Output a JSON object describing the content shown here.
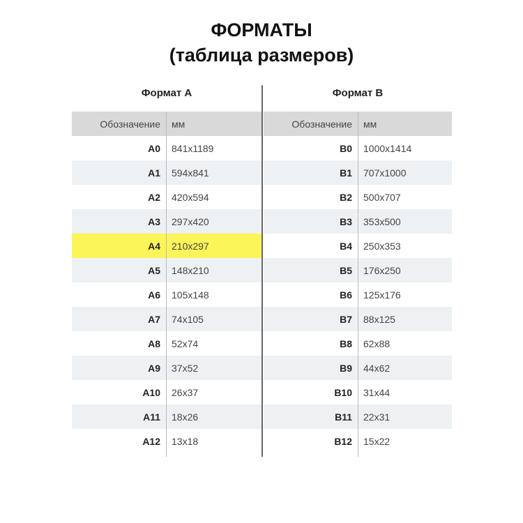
{
  "title_line1": "ФОРМАТЫ",
  "title_line2": "(таблица размеров)",
  "tables": [
    {
      "heading": "Формат A",
      "col1": "Обозначение",
      "col2": "мм",
      "rows": [
        [
          "A0",
          "841x1189"
        ],
        [
          "A1",
          "594x841"
        ],
        [
          "A2",
          "420x594"
        ],
        [
          "A3",
          "297x420"
        ],
        [
          "A4",
          "210x297"
        ],
        [
          "A5",
          "148x210"
        ],
        [
          "A6",
          "105x148"
        ],
        [
          "A7",
          "74x105"
        ],
        [
          "A8",
          "52x74"
        ],
        [
          "A9",
          "37x52"
        ],
        [
          "A10",
          "26x37"
        ],
        [
          "A11",
          "18x26"
        ],
        [
          "A12",
          "13x18"
        ]
      ],
      "highlight_row": "A4",
      "highlight_color": "#fbf559"
    },
    {
      "heading": "Формат B",
      "col1": "Обозначение",
      "col2": "мм",
      "rows": [
        [
          "B0",
          "1000x1414"
        ],
        [
          "B1",
          "707x1000"
        ],
        [
          "B2",
          "500x707"
        ],
        [
          "B3",
          "353x500"
        ],
        [
          "B4",
          "250x353"
        ],
        [
          "B5",
          "176x250"
        ],
        [
          "B6",
          "125x176"
        ],
        [
          "B7",
          "88x125"
        ],
        [
          "B8",
          "62x88"
        ],
        [
          "B9",
          "44x62"
        ],
        [
          "B10",
          "31x44"
        ],
        [
          "B11",
          "22x31"
        ],
        [
          "B12",
          "15x22"
        ]
      ]
    }
  ]
}
